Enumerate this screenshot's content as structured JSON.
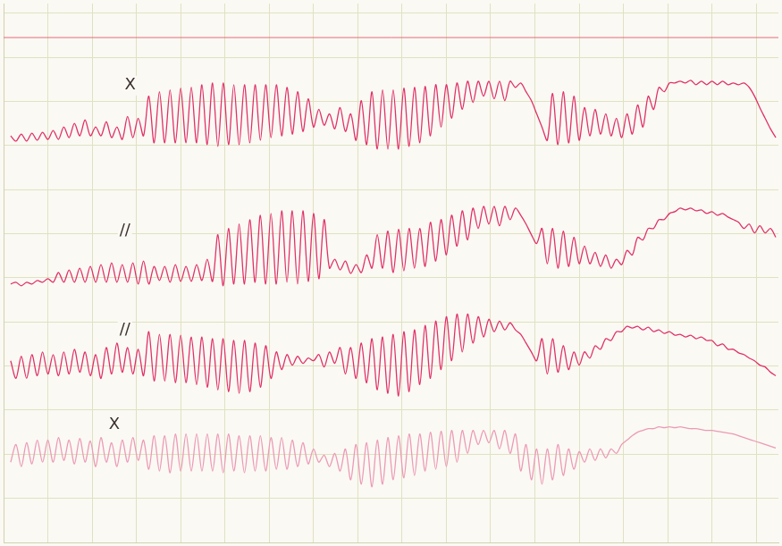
{
  "chart_data": {
    "type": "line",
    "x": [
      8,
      14,
      20,
      26,
      32,
      38,
      44,
      50,
      56,
      62,
      68,
      74,
      80,
      86,
      92,
      98,
      104,
      110,
      116,
      122,
      128,
      134,
      140,
      146,
      152,
      158,
      164,
      170,
      176,
      182,
      188,
      194,
      200,
      206,
      212,
      218,
      224,
      230,
      236,
      242,
      248,
      254,
      260,
      266,
      272,
      278,
      284,
      290,
      296,
      302,
      308,
      314,
      320,
      326,
      332,
      338,
      344,
      350,
      356,
      362,
      368,
      374,
      380,
      386,
      392,
      398,
      404,
      410,
      416,
      422,
      428,
      434,
      440,
      446,
      452,
      458,
      464,
      470,
      476,
      482,
      488,
      494,
      500,
      506,
      512,
      518,
      524,
      530,
      536,
      542,
      548,
      554,
      560,
      566,
      572,
      578,
      584,
      590,
      596,
      602,
      608,
      614,
      620,
      626,
      632,
      638,
      644,
      650,
      656,
      662,
      668,
      674,
      680,
      686,
      692,
      698,
      704,
      710,
      716,
      722,
      728,
      734,
      740,
      746,
      752,
      758,
      764,
      770,
      776,
      782,
      788,
      794,
      800,
      806,
      812,
      818,
      824,
      830,
      836,
      842,
      848,
      854,
      860,
      866,
      872
    ],
    "series": [
      {
        "color": "#e0306a",
        "marker": "none",
        "line_style": "solid",
        "values": [
          461,
          455,
          463,
          455,
          464,
          456,
          465,
          457,
          467,
          457,
          471,
          459,
          475,
          461,
          479,
          461,
          471,
          461,
          477,
          459,
          471,
          457,
          483,
          459,
          481,
          461,
          506,
          453,
          511,
          453,
          513,
          453,
          515,
          453,
          516,
          453,
          519,
          451,
          521,
          449,
          521,
          451,
          519,
          451,
          519,
          453,
          519,
          456,
          519,
          459,
          519,
          461,
          516,
          463,
          511,
          466,
          503,
          471,
          491,
          473,
          486,
          469,
          493,
          466,
          486,
          456,
          501,
          451,
          511,
          446,
          513,
          446,
          513,
          446,
          515,
          449,
          516,
          453,
          517,
          461,
          519,
          471,
          519,
          481,
          521,
          491,
          523,
          499,
          523,
          506,
          523,
          503,
          523,
          501,
          523,
          516,
          521,
          511,
          501,
          486,
          471,
          456,
          509,
          451,
          511,
          453,
          506,
          456,
          493,
          461,
          491,
          463,
          486,
          461,
          481,
          459,
          486,
          463,
          496,
          471,
          506,
          491,
          516,
          511,
          521,
          521,
          523,
          521,
          524,
          519,
          523,
          519,
          523,
          519,
          523,
          519,
          521,
          519,
          521,
          516,
          506,
          493,
          481,
          469,
          459
        ]
      },
      {
        "color": "#e0306a",
        "marker": "none",
        "line_style": "solid",
        "values": [
          293,
          295,
          291,
          295,
          293,
          297,
          295,
          299,
          295,
          306,
          295,
          309,
          295,
          311,
          295,
          313,
          295,
          315,
          295,
          317,
          295,
          315,
          295,
          317,
          293,
          319,
          293,
          313,
          297,
          313,
          295,
          315,
          296,
          313,
          296,
          315,
          297,
          321,
          296,
          349,
          291,
          356,
          293,
          361,
          293,
          366,
          295,
          371,
          293,
          373,
          293,
          376,
          295,
          376,
          293,
          376,
          296,
          373,
          299,
          366,
          311,
          321,
          309,
          319,
          305,
          315,
          306,
          326,
          311,
          349,
          311,
          353,
          306,
          355,
          308,
          356,
          311,
          356,
          313,
          363,
          319,
          366,
          326,
          371,
          336,
          376,
          343,
          379,
          356,
          381,
          361,
          381,
          359,
          381,
          366,
          379,
          371,
          361,
          349,
          339,
          356,
          316,
          356,
          311,
          353,
          313,
          346,
          316,
          336,
          316,
          329,
          313,
          326,
          311,
          321,
          315,
          331,
          326,
          346,
          343,
          356,
          356,
          366,
          366,
          373,
          375,
          379,
          377,
          379,
          376,
          377,
          373,
          375,
          371,
          373,
          369,
          366,
          363,
          356,
          361,
          351,
          359,
          351,
          356,
          346
        ]
      },
      {
        "color": "#e0306a",
        "marker": "none",
        "line_style": "solid",
        "values": [
          206,
          186,
          211,
          186,
          213,
          189,
          216,
          191,
          213,
          189,
          216,
          191,
          219,
          193,
          216,
          189,
          213,
          186,
          221,
          191,
          226,
          193,
          221,
          191,
          219,
          189,
          239,
          183,
          236,
          183,
          236,
          181,
          235,
          181,
          233,
          179,
          233,
          176,
          231,
          173,
          231,
          171,
          229,
          169,
          229,
          171,
          226,
          176,
          223,
          186,
          216,
          196,
          213,
          201,
          211,
          203,
          209,
          206,
          213,
          199,
          216,
          203,
          221,
          191,
          221,
          186,
          226,
          181,
          231,
          173,
          233,
          169,
          236,
          166,
          239,
          171,
          241,
          179,
          246,
          186,
          251,
          196,
          256,
          206,
          259,
          216,
          259,
          226,
          256,
          233,
          253,
          239,
          251,
          241,
          249,
          241,
          236,
          226,
          216,
          206,
          231,
          191,
          231,
          193,
          223,
          196,
          216,
          201,
          216,
          209,
          223,
          219,
          231,
          229,
          239,
          239,
          245,
          243,
          245,
          241,
          244,
          239,
          241,
          237,
          239,
          235,
          236,
          233,
          235,
          231,
          233,
          229,
          229,
          223,
          225,
          219,
          219,
          215,
          213,
          209,
          206,
          201,
          199,
          193,
          189
        ]
      },
      {
        "color": "#eb9ab8",
        "marker": "none",
        "line_style": "solid",
        "values": [
          91,
          111,
          86,
          113,
          89,
          116,
          91,
          116,
          91,
          119,
          93,
          116,
          89,
          118,
          91,
          115,
          86,
          119,
          91,
          113,
          86,
          116,
          91,
          119,
          93,
          116,
          83,
          121,
          81,
          121,
          79,
          123,
          81,
          123,
          81,
          123,
          81,
          123,
          81,
          123,
          79,
          123,
          81,
          121,
          79,
          121,
          81,
          121,
          81,
          119,
          83,
          119,
          83,
          116,
          86,
          113,
          89,
          106,
          91,
          99,
          86,
          101,
          81,
          106,
          71,
          111,
          66,
          113,
          63,
          116,
          66,
          119,
          71,
          121,
          73,
          123,
          76,
          123,
          81,
          125,
          83,
          126,
          86,
          127,
          91,
          127,
          101,
          127,
          111,
          127,
          113,
          127,
          106,
          127,
          101,
          123,
          81,
          111,
          71,
          106,
          66,
          106,
          71,
          111,
          76,
          106,
          83,
          103,
          91,
          106,
          93,
          106,
          96,
          106,
          101,
          111,
          116,
          121,
          125,
          127,
          129,
          129,
          131,
          130,
          131,
          130,
          131,
          130,
          129,
          129,
          128,
          127,
          127,
          126,
          125,
          124,
          123,
          121,
          119,
          117,
          115,
          113,
          111,
          109,
          107
        ]
      }
    ],
    "annotations": [
      {
        "text": "X",
        "x": 143,
        "y": 518
      },
      {
        "text": "//",
        "x": 137,
        "y": 353
      },
      {
        "text": "//",
        "x": 137,
        "y": 241
      },
      {
        "text": "X",
        "x": 125,
        "y": 133
      }
    ],
    "xlim": [
      0,
      875
    ],
    "xticks": [
      0,
      50,
      100,
      150,
      200,
      250,
      300,
      350,
      400,
      450,
      500,
      550,
      600,
      650,
      700,
      750,
      800,
      850
    ],
    "ylim": [
      0,
      611
    ],
    "yticks": [
      0,
      50,
      100,
      150,
      200,
      250,
      300,
      350,
      400,
      450,
      500,
      550,
      600
    ],
    "grid": true,
    "tick_labels": false
  }
}
